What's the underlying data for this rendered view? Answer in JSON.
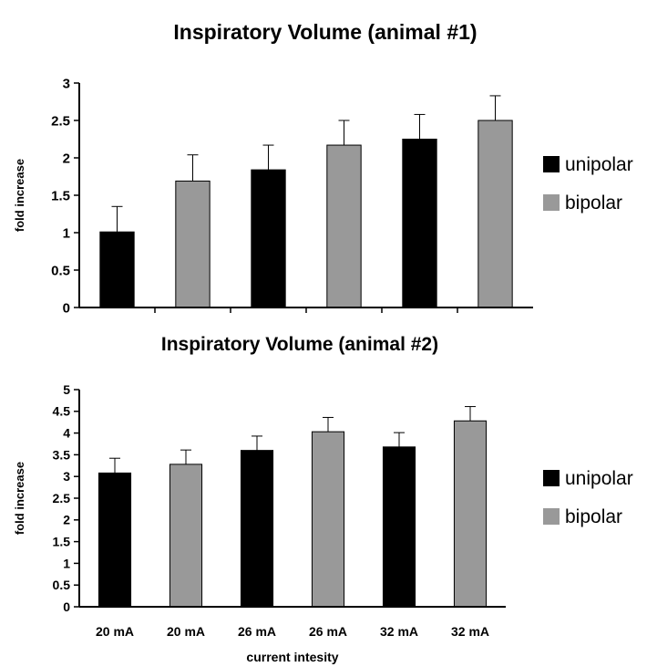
{
  "chart_data": [
    {
      "type": "bar",
      "title": "Inspiratory Volume (animal #1)",
      "xlabel": "",
      "ylabel": "fold increase",
      "ylim": [
        0,
        3
      ],
      "yticks": [
        "0",
        "0.5",
        "1",
        "1.5",
        "2",
        "2.5",
        "3"
      ],
      "categories": [
        "",
        "",
        "",
        "",
        "",
        ""
      ],
      "bars": [
        {
          "series": "unipolar",
          "value": 1.01,
          "error": 0.34
        },
        {
          "series": "bipolar",
          "value": 1.69,
          "error": 0.35
        },
        {
          "series": "unipolar",
          "value": 1.84,
          "error": 0.33
        },
        {
          "series": "bipolar",
          "value": 2.17,
          "error": 0.33
        },
        {
          "series": "unipolar",
          "value": 2.25,
          "error": 0.33
        },
        {
          "series": "bipolar",
          "value": 2.5,
          "error": 0.33
        }
      ],
      "legend": [
        {
          "label": "unipolar",
          "color": "#000000"
        },
        {
          "label": "bipolar",
          "color": "#999999"
        }
      ],
      "legend_position": "right",
      "grid": false
    },
    {
      "type": "bar",
      "title": "Inspiratory Volume (animal #2)",
      "xlabel": "current intesity",
      "ylabel": "fold increase",
      "ylim": [
        0,
        5
      ],
      "yticks": [
        "0",
        "0.5",
        "1",
        "1.5",
        "2",
        "2.5",
        "3",
        "3.5",
        "4",
        "4.5",
        "5"
      ],
      "categories": [
        "20 mA",
        "20 mA",
        "26 mA",
        "26 mA",
        "32 mA",
        "32 mA"
      ],
      "bars": [
        {
          "series": "unipolar",
          "value": 3.08,
          "error": 0.34
        },
        {
          "series": "bipolar",
          "value": 3.28,
          "error": 0.33
        },
        {
          "series": "unipolar",
          "value": 3.6,
          "error": 0.33
        },
        {
          "series": "bipolar",
          "value": 4.03,
          "error": 0.33
        },
        {
          "series": "unipolar",
          "value": 3.68,
          "error": 0.33
        },
        {
          "series": "bipolar",
          "value": 4.28,
          "error": 0.33
        }
      ],
      "legend": [
        {
          "label": "unipolar",
          "color": "#000000"
        },
        {
          "label": "bipolar",
          "color": "#999999"
        }
      ],
      "legend_position": "right",
      "grid": false
    }
  ]
}
